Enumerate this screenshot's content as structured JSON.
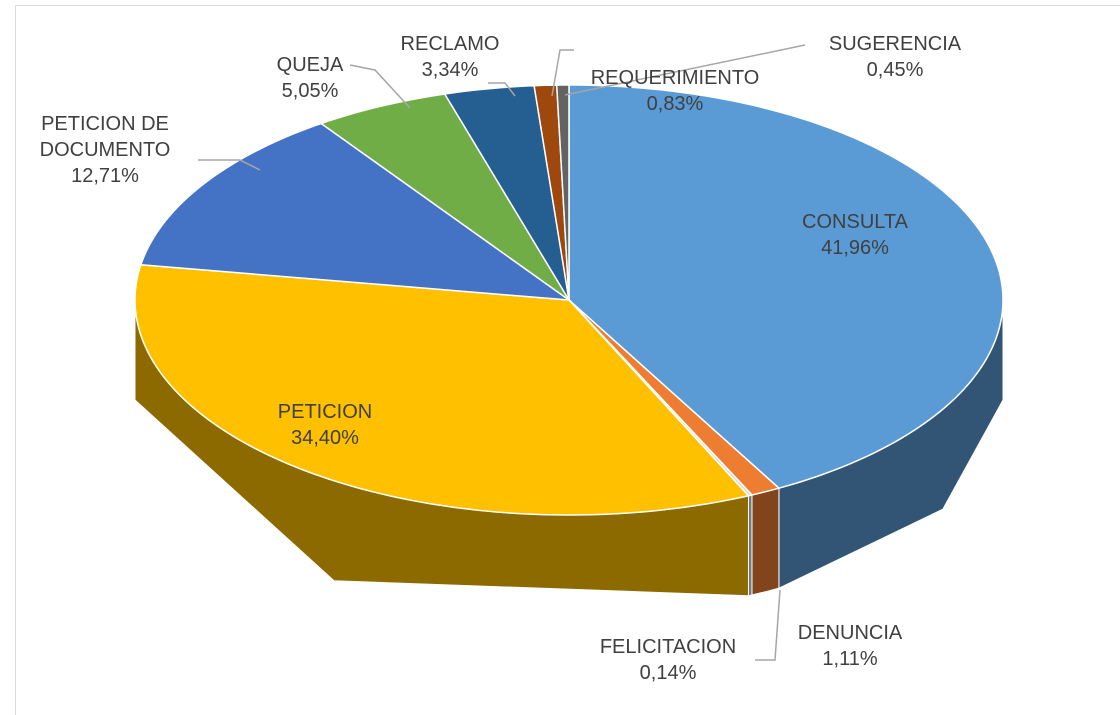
{
  "chart_data": {
    "type": "pie3d",
    "categories": [
      "CONSULTA",
      "DENUNCIA",
      "FELICITACION",
      "PETICION",
      "PETICION DE DOCUMENTO",
      "QUEJA",
      "RECLAMO",
      "REQUERIMIENTO",
      "SUGERENCIA"
    ],
    "values": [
      41.96,
      1.11,
      0.14,
      34.4,
      12.71,
      5.05,
      3.34,
      0.83,
      0.45
    ],
    "value_labels": [
      "41,96%",
      "1,11%",
      "0,14%",
      "34,40%",
      "12,71%",
      "5,05%",
      "3,34%",
      "0,83%",
      "0,45%"
    ],
    "colors": [
      "#5b9bd5",
      "#ed7d31",
      "#d9d9d9",
      "#ffc000",
      "#4472c4",
      "#70ad47",
      "#255e91",
      "#9e480e",
      "#636363"
    ]
  }
}
